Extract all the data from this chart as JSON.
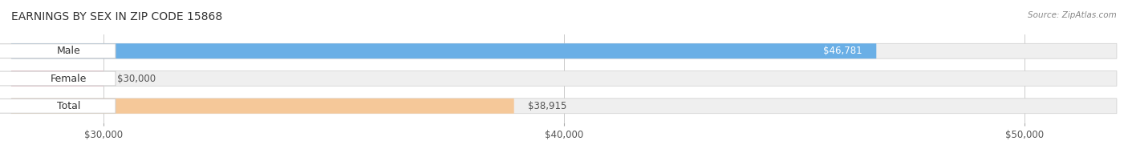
{
  "title": "EARNINGS BY SEX IN ZIP CODE 15868",
  "source": "Source: ZipAtlas.com",
  "categories": [
    "Male",
    "Female",
    "Total"
  ],
  "values": [
    46781,
    30000,
    38915
  ],
  "bar_colors": [
    "#6aafe6",
    "#f4a0b0",
    "#f5c899"
  ],
  "bar_bg_color": "#efefef",
  "value_labels": [
    "$46,781",
    "$30,000",
    "$38,915"
  ],
  "x_min": 28000,
  "x_max": 52000,
  "x_ticks": [
    30000,
    40000,
    50000
  ],
  "x_tick_labels": [
    "$30,000",
    "$40,000",
    "$50,000"
  ],
  "title_fontsize": 10,
  "label_fontsize": 9,
  "value_fontsize": 8.5,
  "background_color": "#ffffff",
  "bar_height": 0.55
}
